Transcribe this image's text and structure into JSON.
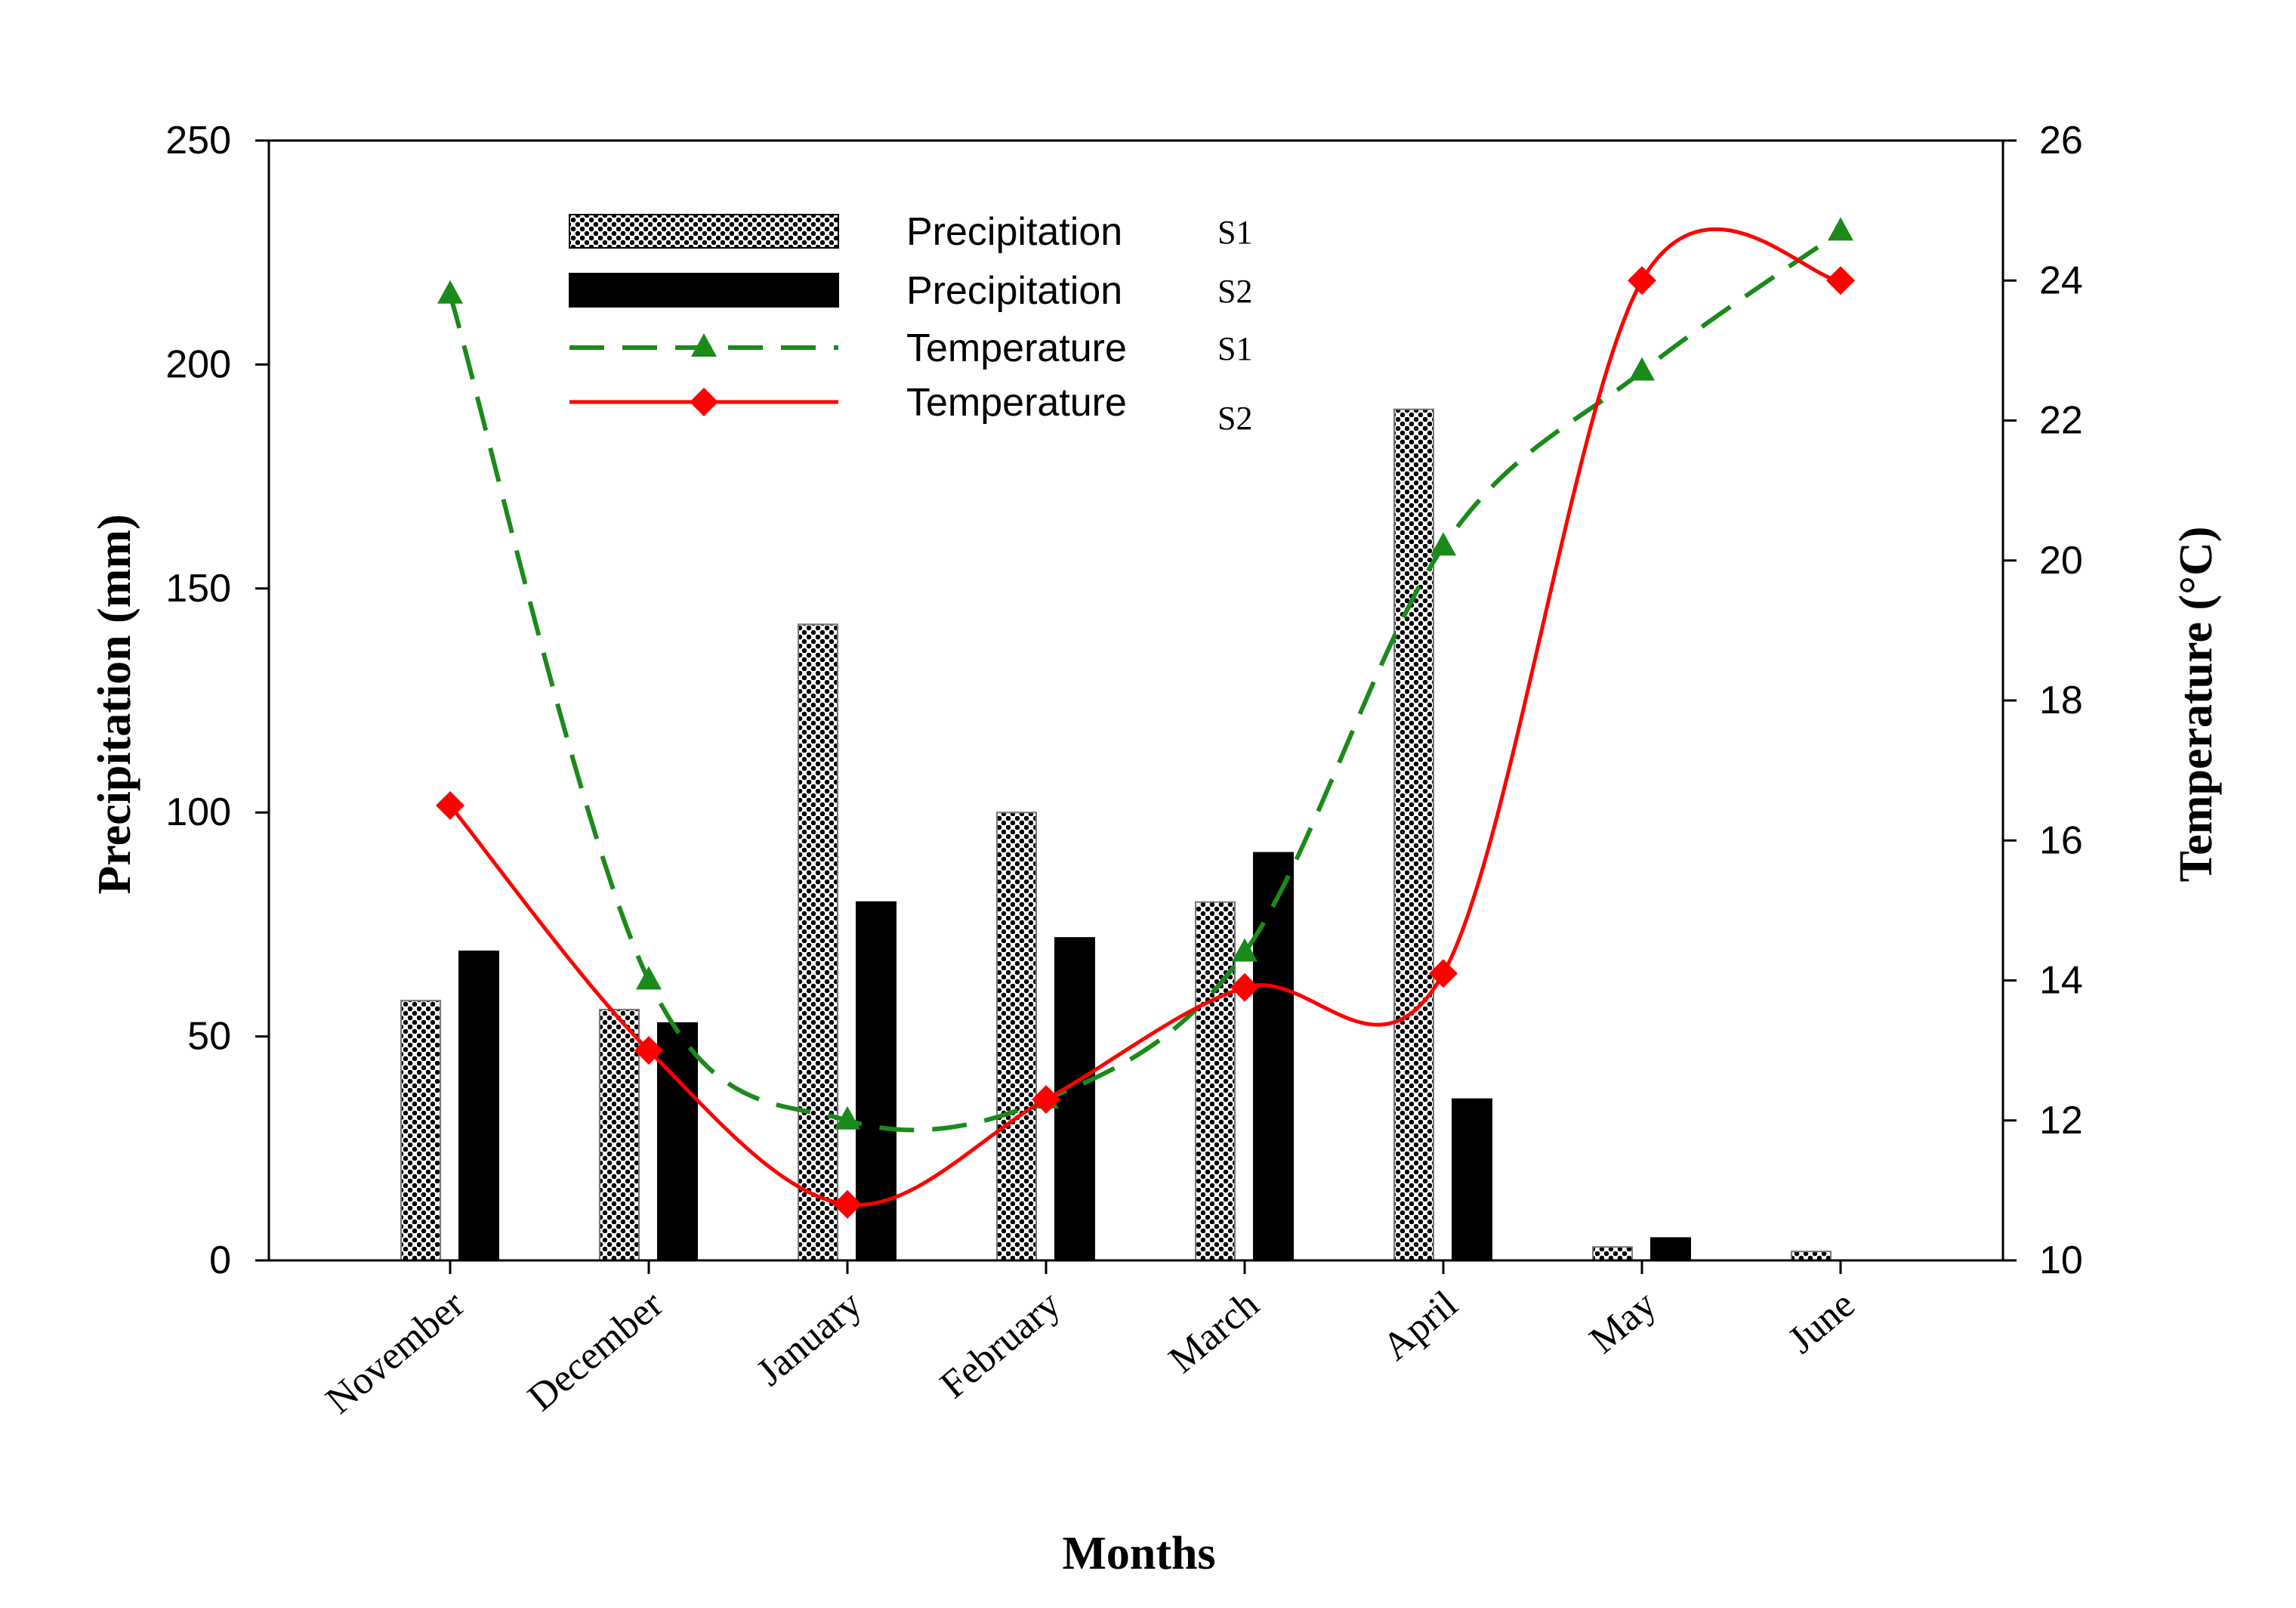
{
  "chart_data": {
    "type": "bar",
    "categories": [
      "November",
      "December",
      "January",
      "February",
      "March",
      "April",
      "May",
      "June"
    ],
    "xlabel": "Months",
    "ylabel": "Precipitation (mm)",
    "y2label": "Temperature (°C)",
    "ylim": [
      0,
      250
    ],
    "yticks": [
      "0",
      "50",
      "100",
      "150",
      "200",
      "250"
    ],
    "y2lim": [
      10,
      26
    ],
    "y2ticks": [
      "10",
      "12",
      "14",
      "16",
      "18",
      "20",
      "22",
      "24",
      "26"
    ],
    "grid": false,
    "legend_position": "top-left",
    "bar_series": [
      {
        "name": "Precipitation",
        "suffix": "S1",
        "style": "dotted",
        "values": [
          58,
          56,
          142,
          100,
          80,
          190,
          3,
          2
        ]
      },
      {
        "name": "Precipitation",
        "suffix": "S2",
        "style": "solid",
        "values": [
          69,
          53,
          80,
          72,
          91,
          36,
          5,
          0
        ]
      }
    ],
    "line_series": [
      {
        "name": "Temperature",
        "suffix": "S1",
        "color": "#1a8a1a",
        "dash": true,
        "marker": "triangle",
        "axis": "right",
        "values": [
          23.8,
          14.0,
          12.0,
          12.3,
          14.4,
          20.2,
          22.7,
          24.7
        ]
      },
      {
        "name": "Temperature",
        "suffix": "S2",
        "color": "#ff0000",
        "dash": false,
        "marker": "diamond",
        "axis": "right",
        "values": [
          16.5,
          13.0,
          10.8,
          12.3,
          13.9,
          14.1,
          24.0,
          24.0
        ]
      }
    ]
  }
}
